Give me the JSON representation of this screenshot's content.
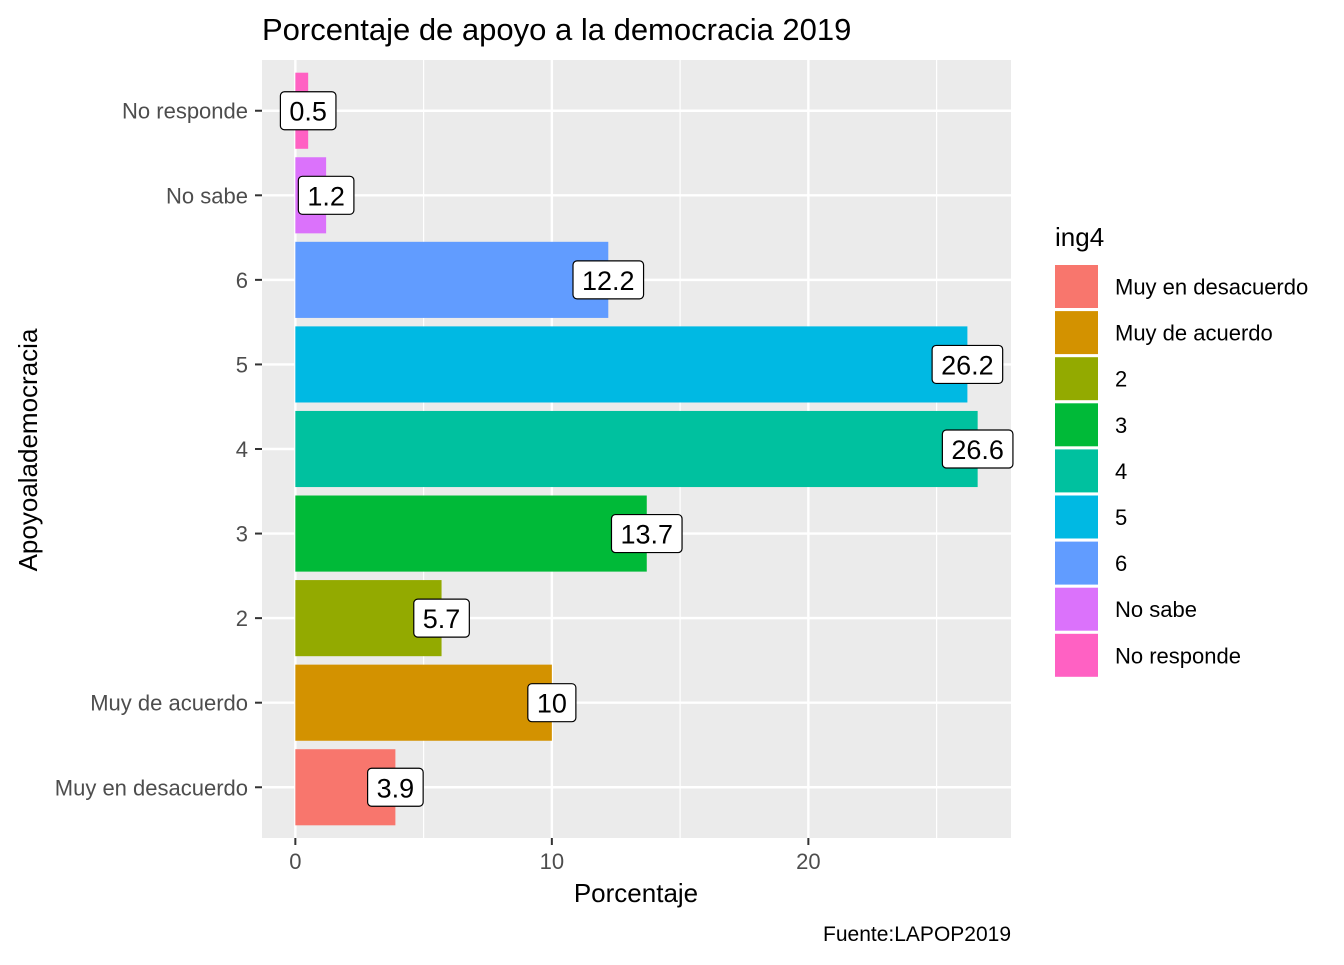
{
  "chart_data": {
    "type": "bar",
    "orientation": "horizontal",
    "title": "Porcentaje de apoyo a la democracia 2019",
    "xlabel": "Porcentaje",
    "ylabel": "Apoyoalademocracia",
    "caption": "Fuente:LAPOP2019",
    "categories": [
      "Muy en desacuerdo",
      "Muy de acuerdo",
      "2",
      "3",
      "4",
      "5",
      "6",
      "No sabe",
      "No responde"
    ],
    "values": [
      3.9,
      10,
      5.7,
      13.7,
      26.6,
      26.2,
      12.2,
      1.2,
      0.5
    ],
    "data_labels": [
      "3.9",
      "10",
      "5.7",
      "13.7",
      "26.6",
      "26.2",
      "12.2",
      "1.2",
      "0.5"
    ],
    "colors": [
      "#F8766D",
      "#D39200",
      "#93AA00",
      "#00BA38",
      "#00C19F",
      "#00B9E3",
      "#619CFF",
      "#DB72FB",
      "#FF61C3"
    ],
    "xlim": [
      -1.3,
      27.9
    ],
    "xticks": [
      0,
      10,
      20
    ],
    "xtick_labels": [
      "0",
      "10",
      "20"
    ],
    "grid": true,
    "panel_background": "#EBEBEB",
    "legend": {
      "title": "ing4",
      "position": "right",
      "entries": [
        "Muy en desacuerdo",
        "Muy de acuerdo",
        "2",
        "3",
        "4",
        "5",
        "6",
        "No sabe",
        "No responde"
      ]
    }
  }
}
